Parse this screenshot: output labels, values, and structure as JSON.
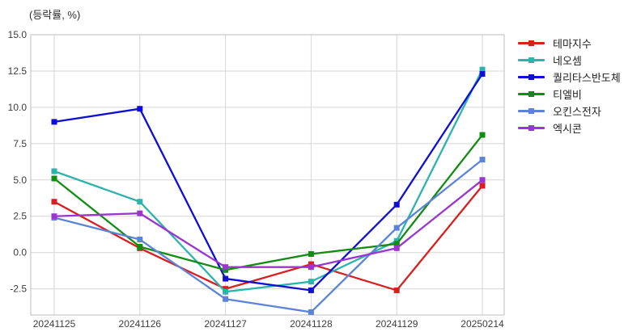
{
  "title": "(등락률, %)",
  "chart_data": {
    "type": "line",
    "title": "(등락률, %)",
    "xlabel": "",
    "ylabel": "등락률 (%)",
    "categories": [
      "20241125",
      "20241126",
      "20241127",
      "20241128",
      "20241129",
      "20250214"
    ],
    "series": [
      {
        "name": "테마지수",
        "color": "#d81e1e",
        "values": [
          3.5,
          0.3,
          -2.5,
          -0.8,
          -2.6,
          4.6
        ]
      },
      {
        "name": "네오셈",
        "color": "#2cb3ac",
        "values": [
          5.6,
          3.5,
          -2.7,
          -2.0,
          0.8,
          12.6
        ]
      },
      {
        "name": "퀄리타스반도체",
        "color": "#0f0fd2",
        "values": [
          9.0,
          9.9,
          -1.8,
          -2.6,
          3.3,
          12.3
        ]
      },
      {
        "name": "티엘비",
        "color": "#128b12",
        "values": [
          5.1,
          0.4,
          -1.2,
          -0.1,
          0.6,
          8.1
        ]
      },
      {
        "name": "오킨스전자",
        "color": "#5b84d8",
        "values": [
          2.4,
          0.9,
          -3.2,
          -4.1,
          1.7,
          6.4
        ]
      },
      {
        "name": "엑시콘",
        "color": "#9a35cf",
        "values": [
          2.5,
          2.7,
          -1.0,
          -1.0,
          0.3,
          5.0
        ]
      }
    ],
    "yticks": [
      15.0,
      12.5,
      10.0,
      7.5,
      5.0,
      2.5,
      0.0,
      -2.5
    ],
    "ylim": [
      -4.3,
      15.0
    ],
    "grid": true,
    "legend_position": "right",
    "colors": {
      "grid": "#d6d6d6",
      "border": "#bdbdbd",
      "tick_text": "#3d3d3d",
      "background": "#ffffff"
    }
  }
}
